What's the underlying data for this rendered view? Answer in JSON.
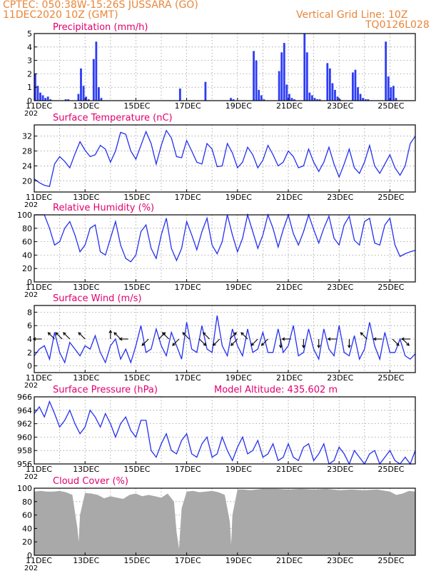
{
  "header": {
    "line1": "CPTEC:   050:38W-15:26S   JUSSARA (GO)",
    "line2": "11DEC2020 10Z (GMT)",
    "vertical_grid": "Vertical Grid Line: 10Z",
    "code": "TQ0126L028"
  },
  "colors": {
    "header": "#e8863a",
    "title": "#e0006e",
    "line": "#2430f0",
    "bar": "#2d3cf5",
    "cloud": "#a9a9a9"
  },
  "chart_data": [
    {
      "type": "bar",
      "title": "Precipitation (mm/h)",
      "ylim": [
        0,
        5
      ],
      "yticks": [
        "0",
        "1",
        "2",
        "3",
        "4",
        "5"
      ],
      "xticks": [
        "11DEC",
        "13DEC",
        "15DEC",
        "17DEC",
        "19DEC",
        "21DEC",
        "23DEC",
        "25DEC"
      ],
      "xsub": "202",
      "x": [
        0.0,
        0.1,
        0.2,
        0.3,
        0.4,
        0.5,
        0.6,
        1.2,
        1.3,
        1.7,
        1.8,
        1.9,
        2.0,
        2.1,
        2.3,
        2.4,
        2.5,
        2.6,
        5.7,
        6.7,
        7.7,
        7.8,
        8.6,
        8.7,
        8.8,
        8.9,
        9.0,
        9.6,
        9.7,
        9.8,
        9.9,
        10.0,
        10.1,
        10.2,
        10.6,
        10.7,
        10.8,
        10.9,
        11.0,
        11.1,
        11.2,
        11.5,
        11.6,
        11.7,
        11.8,
        11.9,
        12.0,
        12.5,
        12.6,
        12.7,
        12.8,
        12.9,
        13.0,
        13.1,
        13.8,
        13.9,
        14.0,
        14.1,
        14.2
      ],
      "values": [
        2.0,
        1.1,
        0.6,
        0.4,
        0.2,
        0.3,
        0.1,
        0.1,
        0.1,
        0.5,
        2.4,
        1.1,
        0.3,
        0.1,
        3.1,
        4.4,
        1.0,
        0.2,
        0.9,
        1.4,
        0.2,
        0.1,
        3.7,
        3.0,
        0.8,
        0.4,
        0.1,
        2.2,
        3.6,
        4.3,
        1.2,
        0.5,
        0.2,
        0.1,
        5.0,
        3.6,
        0.6,
        0.4,
        0.2,
        0.1,
        0.1,
        2.8,
        2.4,
        1.3,
        0.8,
        0.3,
        0.1,
        2.1,
        2.3,
        1.0,
        0.5,
        0.2,
        0.1,
        0.1,
        4.4,
        1.8,
        1.0,
        1.1,
        0.2
      ]
    },
    {
      "type": "line",
      "title": "Surface Temperature (nC)",
      "ylim": [
        17,
        35
      ],
      "yticks": [
        "20",
        "24",
        "28",
        "32"
      ],
      "ytick_values": [
        20,
        24,
        28,
        32
      ],
      "xticks": [
        "11DEC",
        "13DEC",
        "15DEC",
        "17DEC",
        "19DEC",
        "21DEC",
        "23DEC",
        "25DEC"
      ],
      "xsub": "202",
      "x": [
        0.0,
        0.2,
        0.4,
        0.6,
        0.8,
        1.0,
        1.2,
        1.4,
        1.6,
        1.8,
        2.0,
        2.2,
        2.4,
        2.6,
        2.8,
        3.0,
        3.2,
        3.4,
        3.6,
        3.8,
        4.0,
        4.2,
        4.4,
        4.6,
        4.8,
        5.0,
        5.2,
        5.4,
        5.6,
        5.8,
        6.0,
        6.2,
        6.4,
        6.6,
        6.8,
        7.0,
        7.2,
        7.4,
        7.6,
        7.8,
        8.0,
        8.2,
        8.4,
        8.6,
        8.8,
        9.0,
        9.2,
        9.4,
        9.6,
        9.8,
        10.0,
        10.2,
        10.4,
        10.6,
        10.8,
        11.0,
        11.2,
        11.4,
        11.6,
        11.8,
        12.0,
        12.2,
        12.4,
        12.6,
        12.8,
        13.0,
        13.2,
        13.4,
        13.6,
        13.8,
        14.0,
        14.2,
        14.4,
        14.6,
        14.8,
        15.0
      ],
      "values": [
        20.5,
        19.5,
        18.8,
        18.5,
        24.5,
        26.5,
        25.2,
        23.5,
        27.2,
        30.5,
        28.2,
        26.5,
        27.0,
        29.5,
        28.5,
        25.0,
        28.0,
        33.0,
        32.5,
        28.0,
        25.8,
        29.5,
        33.2,
        30.0,
        24.5,
        29.5,
        33.5,
        31.5,
        26.5,
        26.2,
        30.8,
        28.0,
        25.0,
        24.5,
        30.0,
        28.5,
        23.8,
        24.0,
        30.0,
        27.5,
        23.5,
        25.0,
        29.0,
        27.0,
        23.5,
        25.5,
        29.5,
        27.0,
        24.0,
        25.0,
        28.0,
        26.5,
        23.5,
        24.0,
        28.5,
        25.0,
        22.5,
        25.0,
        29.0,
        24.5,
        21.0,
        24.5,
        28.5,
        23.5,
        22.0,
        25.0,
        29.5,
        24.0,
        22.0,
        24.5,
        27.0,
        23.5,
        21.5,
        24.0,
        30.0,
        32.0
      ]
    },
    {
      "type": "line",
      "title": "Relative Humidity (%)",
      "ylim": [
        0,
        100
      ],
      "yticks": [
        "0",
        "20",
        "40",
        "60",
        "80",
        "100"
      ],
      "ytick_values": [
        0,
        20,
        40,
        60,
        80,
        100
      ],
      "xticks": [
        "11DEC",
        "13DEC",
        "15DEC",
        "17DEC",
        "19DEC",
        "21DEC",
        "23DEC",
        "25DEC"
      ],
      "xsub": "202",
      "x": [
        0.0,
        0.2,
        0.4,
        0.6,
        0.8,
        1.0,
        1.2,
        1.4,
        1.6,
        1.8,
        2.0,
        2.2,
        2.4,
        2.6,
        2.8,
        3.0,
        3.2,
        3.4,
        3.6,
        3.8,
        4.0,
        4.2,
        4.4,
        4.6,
        4.8,
        5.0,
        5.2,
        5.4,
        5.6,
        5.8,
        6.0,
        6.2,
        6.4,
        6.6,
        6.8,
        7.0,
        7.2,
        7.4,
        7.6,
        7.8,
        8.0,
        8.2,
        8.4,
        8.6,
        8.8,
        9.0,
        9.2,
        9.4,
        9.6,
        9.8,
        10.0,
        10.2,
        10.4,
        10.6,
        10.8,
        11.0,
        11.2,
        11.4,
        11.6,
        11.8,
        12.0,
        12.2,
        12.4,
        12.6,
        12.8,
        13.0,
        13.2,
        13.4,
        13.6,
        13.8,
        14.0,
        14.2,
        14.4,
        14.6,
        14.8,
        15.0
      ],
      "values": [
        100,
        100,
        100,
        80,
        55,
        60,
        80,
        90,
        70,
        45,
        55,
        80,
        85,
        45,
        40,
        65,
        90,
        55,
        35,
        30,
        40,
        75,
        85,
        50,
        35,
        70,
        95,
        50,
        32,
        50,
        90,
        70,
        48,
        75,
        95,
        55,
        42,
        60,
        100,
        70,
        45,
        65,
        100,
        75,
        50,
        70,
        100,
        80,
        52,
        78,
        100,
        72,
        55,
        75,
        100,
        78,
        58,
        80,
        98,
        65,
        55,
        85,
        98,
        62,
        55,
        90,
        95,
        58,
        55,
        85,
        95,
        55,
        38,
        42,
        45,
        47
      ]
    },
    {
      "type": "line",
      "title": "Surface Wind (m/s)",
      "ylim": [
        -1,
        9
      ],
      "yticks": [
        "0",
        "2",
        "4",
        "6",
        "8"
      ],
      "ytick_values": [
        0,
        2,
        4,
        6,
        8
      ],
      "xticks": [
        "11DEC",
        "13DEC",
        "15DEC",
        "17DEC",
        "19DEC",
        "21DEC",
        "23DEC",
        "25DEC"
      ],
      "xsub": "202",
      "x": [
        0.0,
        0.2,
        0.4,
        0.6,
        0.8,
        1.0,
        1.2,
        1.4,
        1.6,
        1.8,
        2.0,
        2.2,
        2.4,
        2.6,
        2.8,
        3.0,
        3.2,
        3.4,
        3.6,
        3.8,
        4.0,
        4.2,
        4.4,
        4.6,
        4.8,
        5.0,
        5.2,
        5.4,
        5.6,
        5.8,
        6.0,
        6.2,
        6.4,
        6.6,
        6.8,
        7.0,
        7.2,
        7.4,
        7.6,
        7.8,
        8.0,
        8.2,
        8.4,
        8.6,
        8.8,
        9.0,
        9.2,
        9.4,
        9.6,
        9.8,
        10.0,
        10.2,
        10.4,
        10.6,
        10.8,
        11.0,
        11.2,
        11.4,
        11.6,
        11.8,
        12.0,
        12.2,
        12.4,
        12.6,
        12.8,
        13.0,
        13.2,
        13.4,
        13.6,
        13.8,
        14.0,
        14.2,
        14.4,
        14.6,
        14.8,
        15.0
      ],
      "values": [
        1.5,
        2.5,
        3.0,
        1.0,
        5.0,
        2.0,
        0.5,
        3.5,
        2.5,
        1.5,
        3.0,
        2.5,
        4.5,
        2.0,
        0.5,
        3.0,
        4.0,
        1.0,
        2.5,
        0.5,
        3.0,
        6.0,
        2.0,
        2.5,
        5.5,
        3.0,
        1.5,
        5.0,
        3.0,
        1.0,
        6.5,
        2.5,
        2.0,
        6.0,
        2.5,
        2.0,
        7.5,
        3.0,
        1.5,
        5.5,
        3.0,
        1.5,
        5.5,
        2.0,
        2.5,
        5.0,
        2.0,
        2.0,
        5.5,
        2.0,
        3.0,
        6.0,
        1.5,
        2.0,
        5.5,
        2.5,
        1.0,
        5.5,
        2.5,
        1.5,
        6.0,
        2.0,
        1.5,
        4.5,
        1.0,
        2.5,
        6.5,
        3.0,
        1.0,
        5.0,
        2.0,
        2.0,
        4.0,
        1.5,
        1.0,
        1.8
      ]
    },
    {
      "type": "line",
      "title": "Surface Pressure (hPa)",
      "annotation": "Model Altitude: 435.602  m",
      "ylim": [
        956,
        966
      ],
      "yticks": [
        "956",
        "958",
        "960",
        "962",
        "964",
        "966"
      ],
      "ytick_values": [
        956,
        958,
        960,
        962,
        964,
        966
      ],
      "xticks": [
        "11DEC",
        "13DEC",
        "15DEC",
        "17DEC",
        "19DEC",
        "21DEC",
        "23DEC",
        "25DEC"
      ],
      "xsub": "202",
      "x": [
        0.0,
        0.2,
        0.4,
        0.6,
        0.8,
        1.0,
        1.2,
        1.4,
        1.6,
        1.8,
        2.0,
        2.2,
        2.4,
        2.6,
        2.8,
        3.0,
        3.2,
        3.4,
        3.6,
        3.8,
        4.0,
        4.2,
        4.4,
        4.6,
        4.8,
        5.0,
        5.2,
        5.4,
        5.6,
        5.8,
        6.0,
        6.2,
        6.4,
        6.6,
        6.8,
        7.0,
        7.2,
        7.4,
        7.6,
        7.8,
        8.0,
        8.2,
        8.4,
        8.6,
        8.8,
        9.0,
        9.2,
        9.4,
        9.6,
        9.8,
        10.0,
        10.2,
        10.4,
        10.6,
        10.8,
        11.0,
        11.2,
        11.4,
        11.6,
        11.8,
        12.0,
        12.2,
        12.4,
        12.6,
        12.8,
        13.0,
        13.2,
        13.4,
        13.6,
        13.8,
        14.0,
        14.2,
        14.4,
        14.6,
        14.8,
        15.0
      ],
      "values": [
        963.5,
        964.5,
        963.0,
        965.3,
        963.5,
        961.5,
        962.5,
        964.0,
        962.0,
        960.5,
        961.5,
        964.0,
        963.0,
        961.5,
        963.5,
        962.0,
        960.0,
        962.0,
        963.0,
        961.0,
        960.0,
        962.5,
        962.5,
        958.0,
        957.0,
        959.0,
        960.5,
        958.0,
        957.5,
        959.5,
        960.5,
        957.5,
        957.0,
        959.0,
        960.0,
        957.0,
        957.5,
        960.0,
        958.0,
        956.5,
        958.5,
        960.0,
        957.5,
        958.0,
        959.5,
        957.0,
        957.5,
        959.0,
        956.5,
        957.0,
        959.0,
        957.0,
        956.5,
        958.5,
        959.0,
        956.5,
        957.5,
        959.0,
        956.0,
        956.5,
        958.5,
        957.5,
        956.0,
        958.0,
        957.0,
        956.0,
        957.5,
        958.0,
        956.0,
        957.0,
        958.0,
        956.5,
        956.0,
        957.0,
        956.0,
        958.0
      ]
    },
    {
      "type": "area",
      "title": "Cloud Cover (%)",
      "ylim": [
        0,
        100
      ],
      "yticks": [
        "0",
        "20",
        "40",
        "60",
        "80",
        "100"
      ],
      "ytick_values": [
        0,
        20,
        40,
        60,
        80,
        100
      ],
      "xticks": [
        "11DEC",
        "13DEC",
        "15DEC",
        "17DEC",
        "19DEC",
        "21DEC",
        "23DEC",
        "25DEC"
      ],
      "xsub": "202",
      "x": [
        0.0,
        0.25,
        0.5,
        0.75,
        1.0,
        1.25,
        1.5,
        1.7,
        1.75,
        1.8,
        2.0,
        2.25,
        2.5,
        2.75,
        3.0,
        3.25,
        3.5,
        3.75,
        4.0,
        4.25,
        4.5,
        4.75,
        5.0,
        5.25,
        5.5,
        5.6,
        5.7,
        5.8,
        6.0,
        6.25,
        6.5,
        6.75,
        7.0,
        7.25,
        7.5,
        7.7,
        7.75,
        7.8,
        8.0,
        8.25,
        8.5,
        8.75,
        9.0,
        9.5,
        10.0,
        10.5,
        11.0,
        11.5,
        12.0,
        12.5,
        13.0,
        13.5,
        14.0,
        14.25,
        14.5,
        14.75,
        15.0
      ],
      "values": [
        95,
        96,
        95,
        95,
        96,
        94,
        90,
        40,
        20,
        60,
        93,
        92,
        90,
        85,
        88,
        86,
        84,
        90,
        92,
        88,
        90,
        88,
        86,
        92,
        80,
        35,
        10,
        70,
        95,
        96,
        94,
        95,
        96,
        94,
        90,
        50,
        15,
        60,
        98,
        98,
        97,
        98,
        99,
        99,
        98,
        99,
        98,
        99,
        97,
        98,
        97,
        98,
        95,
        90,
        92,
        96,
        95
      ]
    }
  ],
  "wind_arrows": [
    {
      "x": 0.3,
      "dir": "W"
    },
    {
      "x": 0.8,
      "dir": "NW"
    },
    {
      "x": 1.1,
      "dir": "NW"
    },
    {
      "x": 1.4,
      "dir": "NW"
    },
    {
      "x": 2.0,
      "dir": "NW"
    },
    {
      "x": 3.0,
      "dir": "N"
    },
    {
      "x": 3.4,
      "dir": "NW"
    },
    {
      "x": 3.7,
      "dir": "W"
    },
    {
      "x": 4.5,
      "dir": "SW"
    },
    {
      "x": 4.9,
      "dir": "NE"
    },
    {
      "x": 5.3,
      "dir": "NW"
    },
    {
      "x": 5.7,
      "dir": "SW"
    },
    {
      "x": 6.1,
      "dir": "NW"
    },
    {
      "x": 6.5,
      "dir": "SE"
    },
    {
      "x": 6.9,
      "dir": "NW"
    },
    {
      "x": 7.3,
      "dir": "SW"
    },
    {
      "x": 7.7,
      "dir": "NE"
    },
    {
      "x": 8.0,
      "dir": "SW"
    },
    {
      "x": 8.4,
      "dir": "NW"
    },
    {
      "x": 8.8,
      "dir": "SW"
    },
    {
      "x": 9.2,
      "dir": "SW"
    },
    {
      "x": 9.7,
      "dir": "S"
    },
    {
      "x": 10.1,
      "dir": "W"
    },
    {
      "x": 10.6,
      "dir": "S"
    },
    {
      "x": 11.2,
      "dir": "S"
    },
    {
      "x": 11.9,
      "dir": "W"
    },
    {
      "x": 12.4,
      "dir": "S"
    },
    {
      "x": 13.1,
      "dir": "NW"
    },
    {
      "x": 13.7,
      "dir": "W"
    },
    {
      "x": 14.1,
      "dir": "SE"
    },
    {
      "x": 14.5,
      "dir": "SE"
    },
    {
      "x": 14.8,
      "dir": "W"
    }
  ]
}
